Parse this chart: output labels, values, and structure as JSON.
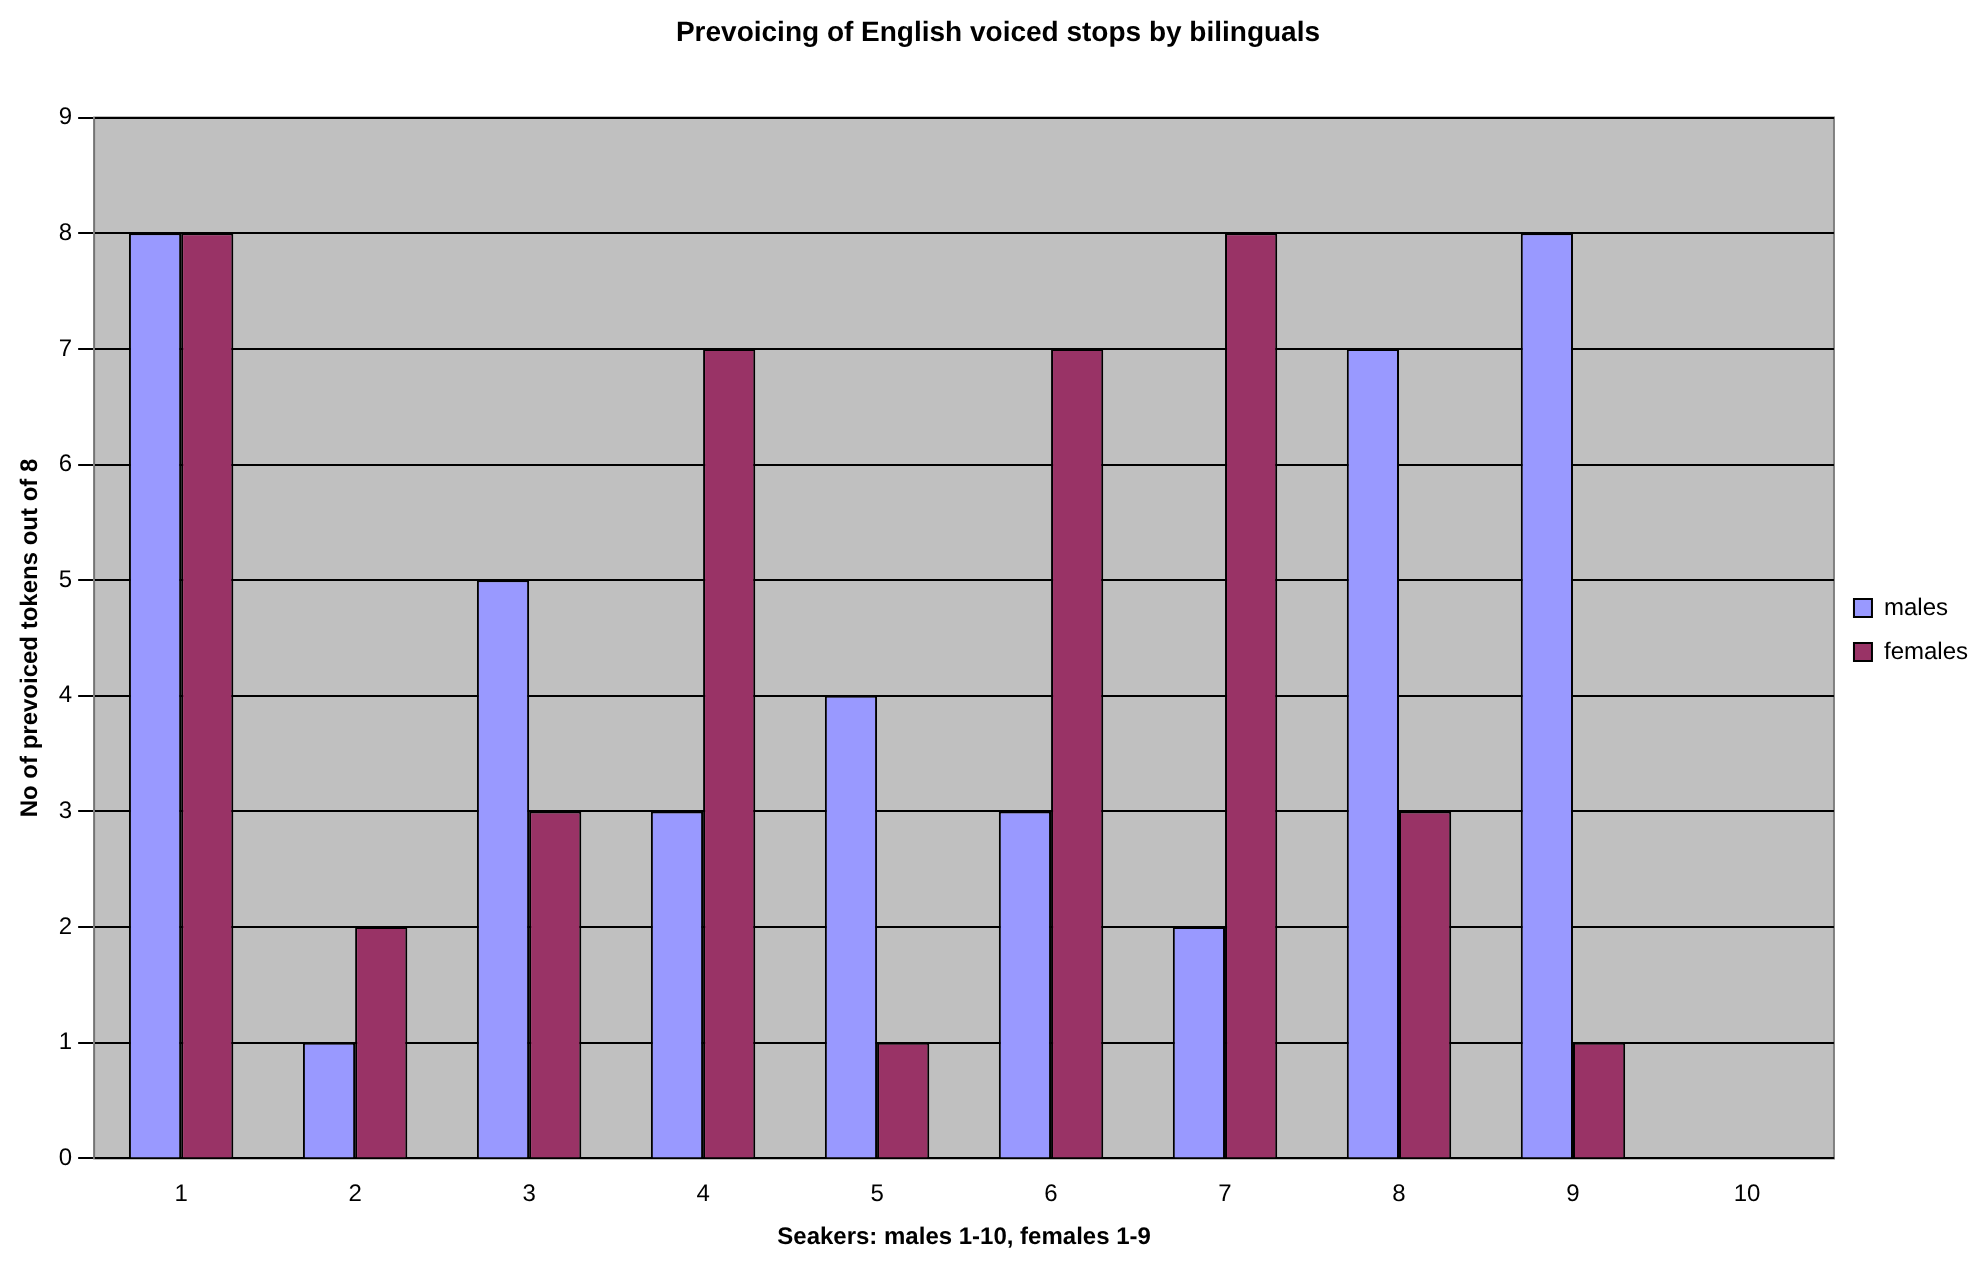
{
  "chart_data": {
    "type": "bar",
    "title": "Prevoicing of English voiced stops by bilinguals",
    "xlabel": "Seakers: males 1-10, females 1-9",
    "ylabel": "No of prevoiced tokens out of 8",
    "categories": [
      "1",
      "2",
      "3",
      "4",
      "5",
      "6",
      "7",
      "8",
      "9",
      "10"
    ],
    "series": [
      {
        "name": "males",
        "color": "#9999ff",
        "values": [
          8,
          1,
          5,
          3,
          4,
          3,
          2,
          7,
          8,
          0
        ]
      },
      {
        "name": "females",
        "color": "#993366",
        "values": [
          8,
          2,
          3,
          7,
          1,
          7,
          8,
          3,
          1,
          null
        ]
      }
    ],
    "ylim": [
      0,
      9
    ],
    "yticks": [
      0,
      1,
      2,
      3,
      4,
      5,
      6,
      7,
      8,
      9
    ],
    "grid": "y",
    "legend": "right"
  }
}
